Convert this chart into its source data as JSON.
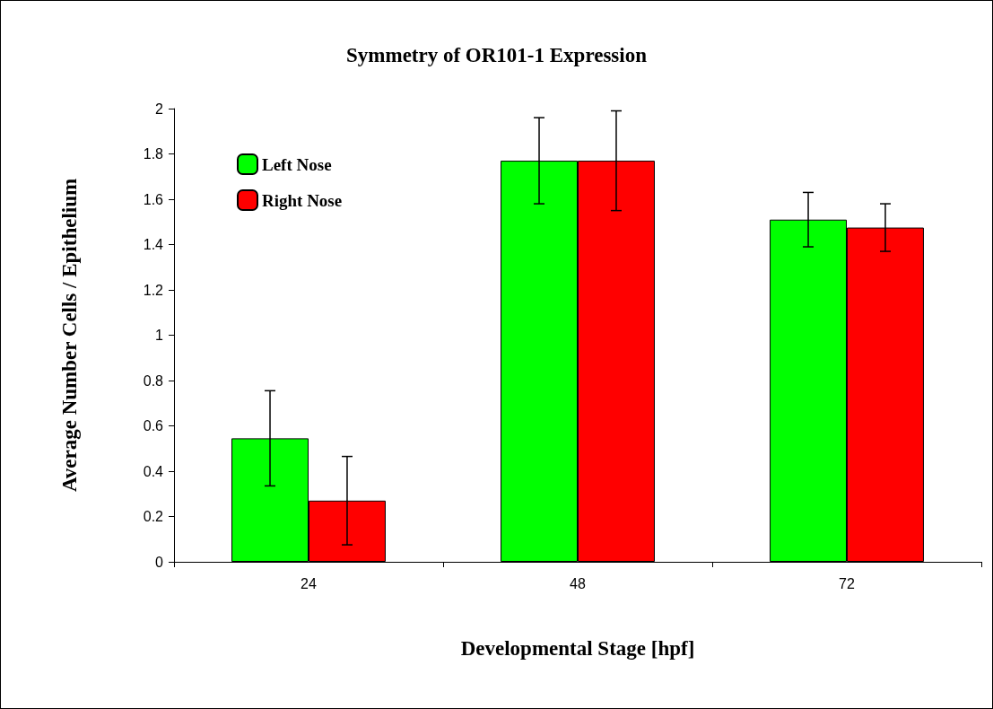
{
  "chart_data": {
    "type": "bar",
    "title": "Symmetry of OR101-1 Expression",
    "xlabel": "Developmental Stage [hpf]",
    "ylabel": "Average Number Cells / Epithelium",
    "categories": [
      "24",
      "48",
      "72"
    ],
    "series": [
      {
        "name": "Left Nose",
        "color": "#00ff00",
        "values": [
          0.545,
          1.77,
          1.51
        ],
        "errors": [
          0.21,
          0.19,
          0.12
        ]
      },
      {
        "name": "Right Nose",
        "color": "#ff0000",
        "values": [
          0.27,
          1.77,
          1.475
        ],
        "errors": [
          0.195,
          0.22,
          0.105
        ]
      }
    ],
    "ylim": [
      0,
      2
    ],
    "yticks": [
      0,
      0.2,
      0.4,
      0.6,
      0.8,
      1,
      1.2,
      1.4,
      1.6,
      1.8,
      2
    ],
    "grid": false,
    "legend": "top left"
  }
}
